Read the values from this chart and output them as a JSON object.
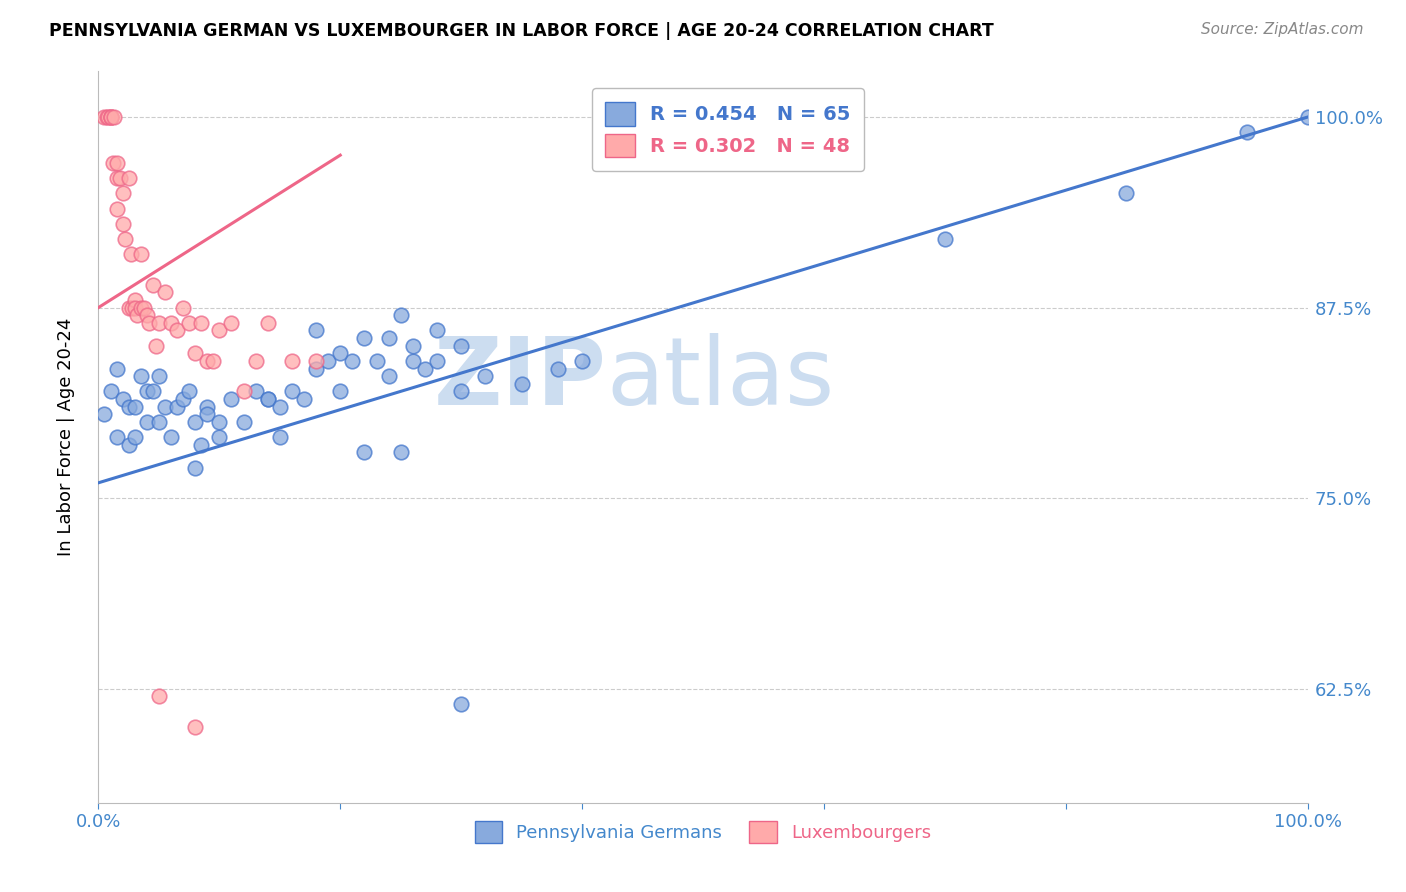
{
  "title": "PENNSYLVANIA GERMAN VS LUXEMBOURGER IN LABOR FORCE | AGE 20-24 CORRELATION CHART",
  "source": "Source: ZipAtlas.com",
  "ylabel": "In Labor Force | Age 20-24",
  "blue_color": "#88AADD",
  "pink_color": "#FFAAAA",
  "blue_line_color": "#4477CC",
  "pink_line_color": "#EE6688",
  "legend_blue_label": "R = 0.454   N = 65",
  "legend_pink_label": "R = 0.302   N = 48",
  "watermark": "ZIPatlas",
  "watermark_color": "#CCDDF0",
  "axis_color": "#4488CC",
  "grid_color": "#CCCCCC",
  "xlim": [
    0.0,
    1.0
  ],
  "ylim": [
    0.55,
    1.03
  ],
  "ytick_vals": [
    0.625,
    0.75,
    0.875,
    1.0
  ],
  "ytick_labels": [
    "62.5%",
    "75.0%",
    "87.5%",
    "100.0%"
  ],
  "blue_x": [
    0.005,
    0.01,
    0.015,
    0.015,
    0.02,
    0.025,
    0.025,
    0.03,
    0.03,
    0.035,
    0.04,
    0.04,
    0.045,
    0.05,
    0.05,
    0.055,
    0.06,
    0.065,
    0.07,
    0.075,
    0.08,
    0.08,
    0.085,
    0.09,
    0.09,
    0.1,
    0.1,
    0.11,
    0.12,
    0.13,
    0.14,
    0.14,
    0.15,
    0.15,
    0.16,
    0.17,
    0.18,
    0.19,
    0.2,
    0.21,
    0.22,
    0.23,
    0.24,
    0.25,
    0.26,
    0.27,
    0.28,
    0.3,
    0.32,
    0.35,
    0.38,
    0.4,
    0.25,
    0.28,
    0.3,
    0.18,
    0.2,
    0.22,
    0.24,
    0.26,
    0.7,
    0.85,
    0.95,
    1.0,
    0.3
  ],
  "blue_y": [
    0.805,
    0.82,
    0.835,
    0.79,
    0.815,
    0.81,
    0.785,
    0.81,
    0.79,
    0.83,
    0.82,
    0.8,
    0.82,
    0.83,
    0.8,
    0.81,
    0.79,
    0.81,
    0.815,
    0.82,
    0.77,
    0.8,
    0.785,
    0.81,
    0.805,
    0.79,
    0.8,
    0.815,
    0.8,
    0.82,
    0.815,
    0.815,
    0.79,
    0.81,
    0.82,
    0.815,
    0.835,
    0.84,
    0.82,
    0.84,
    0.78,
    0.84,
    0.83,
    0.78,
    0.84,
    0.835,
    0.84,
    0.82,
    0.83,
    0.825,
    0.835,
    0.84,
    0.87,
    0.86,
    0.85,
    0.86,
    0.845,
    0.855,
    0.855,
    0.85,
    0.92,
    0.95,
    0.99,
    1.0,
    0.615
  ],
  "pink_x": [
    0.005,
    0.007,
    0.008,
    0.01,
    0.01,
    0.01,
    0.012,
    0.013,
    0.015,
    0.015,
    0.015,
    0.018,
    0.02,
    0.02,
    0.022,
    0.025,
    0.025,
    0.027,
    0.028,
    0.03,
    0.03,
    0.032,
    0.035,
    0.035,
    0.038,
    0.04,
    0.042,
    0.045,
    0.048,
    0.05,
    0.055,
    0.06,
    0.065,
    0.07,
    0.075,
    0.08,
    0.085,
    0.09,
    0.095,
    0.1,
    0.11,
    0.12,
    0.13,
    0.14,
    0.16,
    0.18,
    0.05,
    0.08
  ],
  "pink_y": [
    1.0,
    1.0,
    1.0,
    1.0,
    1.0,
    1.0,
    0.97,
    1.0,
    0.97,
    0.96,
    0.94,
    0.96,
    0.95,
    0.93,
    0.92,
    0.96,
    0.875,
    0.91,
    0.875,
    0.88,
    0.875,
    0.87,
    0.875,
    0.91,
    0.875,
    0.87,
    0.865,
    0.89,
    0.85,
    0.865,
    0.885,
    0.865,
    0.86,
    0.875,
    0.865,
    0.845,
    0.865,
    0.84,
    0.84,
    0.86,
    0.865,
    0.82,
    0.84,
    0.865,
    0.84,
    0.84,
    0.62,
    0.6
  ],
  "blue_line_x0": 0.0,
  "blue_line_y0": 0.76,
  "blue_line_x1": 1.0,
  "blue_line_y1": 1.0,
  "pink_line_x0": 0.0,
  "pink_line_y0": 0.875,
  "pink_line_x1": 0.2,
  "pink_line_y1": 0.975
}
